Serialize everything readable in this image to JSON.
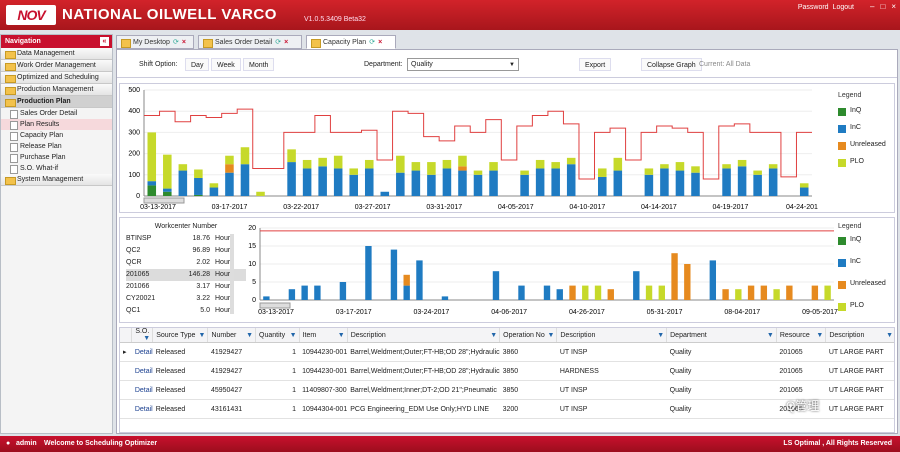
{
  "header": {
    "logo": "NOV",
    "company": "NATIONAL OILWELL VARCO",
    "version": "V1.0.5.3409 Beta32",
    "password": "Password",
    "logout": "Logout",
    "min": "–",
    "max": "□",
    "close": "×"
  },
  "nav": {
    "title": "Navigation",
    "collapse": "«",
    "sections": [
      "Data Management",
      "Work Order Management",
      "Optimized and Scheduling",
      "Production Management",
      "Production Plan",
      "System Management"
    ],
    "items": [
      "Sales Order Detail",
      "Plan Results",
      "Capacity Plan",
      "Release Plan",
      "Purchase Plan",
      "S.O. What-if"
    ]
  },
  "tabs": [
    {
      "label": "My Desktop"
    },
    {
      "label": "Sales Order Detail"
    },
    {
      "label": "Capacity Plan"
    }
  ],
  "toolbar": {
    "shift_label": "Shift Option:",
    "day": "Day",
    "week": "Week",
    "month": "Month",
    "dept_label": "Department:",
    "dept_value": "Quality",
    "export": "Export",
    "collapse": "Collapse Graph",
    "current": "Current: All Data"
  },
  "colors": {
    "inq": "#2e8b2e",
    "inc": "#1f7bc2",
    "unreleased": "#e68a1f",
    "plo": "#c6d92a",
    "capacity": "#e04040"
  },
  "chart_data": [
    {
      "type": "bar",
      "stacked": true,
      "ylim": [
        0,
        500
      ],
      "yticks": [
        0,
        100,
        200,
        300,
        400,
        500
      ],
      "xticks": [
        "03-13-2017",
        "03-17-2017",
        "03-22-2017",
        "03-27-2017",
        "03-31-2017",
        "04-05-2017",
        "04-10-2017",
        "04-14-2017",
        "04-19-2017",
        "04-24-201"
      ],
      "legend_title": "Legend",
      "legend": [
        "InQ",
        "InC",
        "Unreleased",
        "PLO"
      ],
      "legend_position": "right",
      "inq": [
        50,
        20,
        0,
        5,
        0,
        0,
        0,
        0,
        0,
        0,
        0,
        0,
        0,
        0,
        0,
        0,
        0,
        0,
        0,
        0,
        0,
        0,
        0,
        0,
        0,
        0,
        0,
        0,
        0,
        0,
        0,
        0,
        0,
        0,
        0,
        0,
        0,
        0,
        0,
        0,
        0,
        0,
        0
      ],
      "inc": [
        20,
        15,
        120,
        80,
        40,
        110,
        150,
        0,
        0,
        160,
        130,
        140,
        130,
        100,
        130,
        20,
        110,
        120,
        100,
        130,
        120,
        100,
        120,
        0,
        100,
        130,
        130,
        150,
        0,
        90,
        120,
        0,
        100,
        130,
        120,
        110,
        0,
        130,
        140,
        100,
        130,
        0,
        40
      ],
      "unreleased": [
        0,
        0,
        0,
        0,
        0,
        40,
        0,
        0,
        0,
        0,
        0,
        0,
        0,
        0,
        0,
        0,
        0,
        0,
        0,
        0,
        20,
        0,
        0,
        0,
        0,
        0,
        0,
        0,
        0,
        0,
        0,
        0,
        0,
        0,
        0,
        0,
        0,
        0,
        0,
        0,
        0,
        0,
        0
      ],
      "plo": [
        230,
        160,
        30,
        40,
        20,
        40,
        80,
        20,
        0,
        60,
        40,
        40,
        60,
        30,
        40,
        0,
        80,
        40,
        60,
        40,
        50,
        20,
        40,
        0,
        20,
        40,
        30,
        30,
        0,
        40,
        60,
        0,
        30,
        20,
        40,
        30,
        0,
        20,
        30,
        20,
        20,
        0,
        20
      ],
      "capacity": [
        [
          0,
          380
        ],
        [
          1,
          400
        ],
        [
          2,
          350
        ],
        [
          3,
          380
        ],
        [
          4,
          370
        ],
        [
          5,
          390
        ],
        [
          6,
          410
        ],
        [
          7,
          130
        ],
        [
          8,
          130
        ],
        [
          9,
          300
        ],
        [
          10,
          300
        ],
        [
          11,
          380
        ],
        [
          12,
          300
        ],
        [
          13,
          300
        ],
        [
          14,
          310
        ],
        [
          15,
          170
        ],
        [
          16,
          400
        ],
        [
          17,
          390
        ],
        [
          18,
          280
        ],
        [
          19,
          260
        ],
        [
          20,
          330
        ],
        [
          21,
          300
        ],
        [
          22,
          360
        ],
        [
          23,
          170
        ],
        [
          24,
          330
        ],
        [
          25,
          380
        ],
        [
          26,
          400
        ],
        [
          27,
          340
        ],
        [
          28,
          80
        ],
        [
          29,
          300
        ],
        [
          30,
          320
        ],
        [
          31,
          170
        ],
        [
          32,
          300
        ],
        [
          33,
          330
        ],
        [
          34,
          320
        ],
        [
          35,
          300
        ],
        [
          36,
          80
        ],
        [
          37,
          330
        ],
        [
          38,
          340
        ],
        [
          39,
          300
        ],
        [
          40,
          300
        ],
        [
          41,
          90
        ],
        [
          42,
          300
        ]
      ]
    },
    {
      "type": "bar",
      "ylim": [
        0,
        20
      ],
      "yticks": [
        0,
        5,
        10,
        15,
        20
      ],
      "xticks": [
        "03-13-2017",
        "03-17-2017",
        "03-24-2017",
        "04-06-2017",
        "04-26-2017",
        "05-31-2017",
        "08-04-2017",
        "09-05-2017"
      ],
      "legend_title": "Legend",
      "legend": [
        "InQ",
        "InC",
        "Unreleased",
        "PLO"
      ],
      "legend_position": "right",
      "series": [
        {
          "name": "InC",
          "values": [
            1,
            0,
            3,
            4,
            4,
            0,
            5,
            0,
            15,
            0,
            14,
            4,
            11,
            0,
            1,
            0,
            0,
            0,
            8,
            0,
            4,
            0,
            4,
            3,
            0,
            0,
            0,
            0,
            0,
            8,
            0,
            0,
            0,
            0,
            0,
            11,
            0,
            0,
            0,
            0,
            0,
            0,
            0,
            0,
            0
          ]
        },
        {
          "name": "Unreleased",
          "values": [
            0,
            0,
            0,
            0,
            0,
            0,
            0,
            0,
            0,
            0,
            0,
            3,
            0,
            0,
            0,
            0,
            0,
            0,
            0,
            0,
            0,
            0,
            0,
            0,
            4,
            0,
            0,
            3,
            0,
            0,
            0,
            0,
            13,
            10,
            0,
            0,
            3,
            0,
            4,
            4,
            0,
            4,
            0,
            4,
            0
          ]
        },
        {
          "name": "PLO",
          "values": [
            0,
            0,
            0,
            0,
            0,
            0,
            0,
            0,
            0,
            0,
            0,
            0,
            0,
            0,
            0,
            0,
            0,
            0,
            0,
            0,
            0,
            0,
            0,
            0,
            0,
            4,
            4,
            0,
            0,
            0,
            4,
            4,
            0,
            0,
            0,
            0,
            0,
            3,
            0,
            0,
            3,
            0,
            0,
            0,
            4
          ]
        }
      ],
      "capacity": 19.2
    }
  ],
  "workcenter": {
    "title": "Workcenter Number",
    "rows": [
      {
        "name": "BTINSP",
        "val": "18.76",
        "unit": "Hours"
      },
      {
        "name": "QC2",
        "val": "96.89",
        "unit": "Hours"
      },
      {
        "name": "QCR",
        "val": "2.02",
        "unit": "Hours"
      },
      {
        "name": "201065",
        "val": "146.28",
        "unit": "Hours"
      },
      {
        "name": "201066",
        "val": "3.17",
        "unit": "Hours"
      },
      {
        "name": "CY20021",
        "val": "3.22",
        "unit": "Hours"
      },
      {
        "name": "QC1",
        "val": "5.0",
        "unit": "Hours"
      }
    ]
  },
  "grid": {
    "headers": [
      "S.O.",
      "Source Type",
      "Number",
      "Quantity",
      "Item",
      "Description",
      "Operation No",
      "Description",
      "Department",
      "Resource",
      "Description"
    ],
    "rows": [
      [
        "Detail",
        "Released",
        "41929427",
        "1",
        "10944230-001",
        "Barrel,Weldment;Outer;FT-HB;OD 28\";Hydraulic",
        "3860",
        "UT INSP",
        "Quality",
        "201065",
        "UT LARGE PART"
      ],
      [
        "Detail",
        "Released",
        "41929427",
        "1",
        "10944230-001",
        "Barrel,Weldment;Outer;FT-HB;OD 28\";Hydraulic",
        "3850",
        "HARDNESS",
        "Quality",
        "201065",
        "UT LARGE PART"
      ],
      [
        "Detail",
        "Released",
        "45950427",
        "1",
        "11409807-300",
        "Barrel,Weldment;Inner;DT-2;OD 21\";Pneumatic",
        "3850",
        "UT INSP",
        "Quality",
        "201065",
        "UT LARGE PART"
      ],
      [
        "Detail",
        "Released",
        "43161431",
        "1",
        "10944304-001",
        "PCG Engineering_EDM Use Only;HYD LINE",
        "3200",
        "UT INSP",
        "Quality",
        "201065",
        "UT LARGE PART"
      ]
    ]
  },
  "footer": {
    "user": "admin",
    "welcome": "Welcome to Scheduling Optimizer",
    "right": "LS Optimal , All Rights Reserved"
  },
  "watermark": "Q管理"
}
